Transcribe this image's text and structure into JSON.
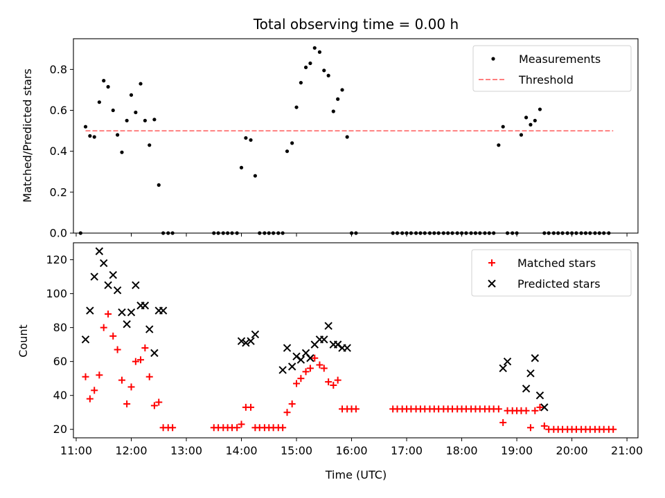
{
  "chart_data": [
    {
      "type": "scatter",
      "title": "Total observing time = 0.00 h",
      "xlabel": "",
      "ylabel": "Matched/Predicted stars",
      "ylim": [
        0,
        0.95
      ],
      "yticks": [
        "0.0",
        "0.2",
        "0.4",
        "0.6",
        "0.8"
      ],
      "legend": {
        "placement": "top-right",
        "entries": [
          "Measurements",
          "Threshold"
        ]
      },
      "series": [
        {
          "name": "Measurements",
          "marker": "dot",
          "color": "#000000",
          "x": [
            11.08,
            11.17,
            11.25,
            11.33,
            11.42,
            11.5,
            11.58,
            11.67,
            11.75,
            11.83,
            11.92,
            12.0,
            12.08,
            12.17,
            12.25,
            12.33,
            12.42,
            12.5,
            12.58,
            12.67,
            12.75,
            13.5,
            13.58,
            13.67,
            13.75,
            13.83,
            13.92,
            14.0,
            14.08,
            14.17,
            14.25,
            14.33,
            14.42,
            14.5,
            14.58,
            14.67,
            14.75,
            14.83,
            14.92,
            15.0,
            15.08,
            15.17,
            15.25,
            15.33,
            15.42,
            15.5,
            15.58,
            15.67,
            15.75,
            15.83,
            15.92,
            16.0,
            16.08,
            16.75,
            16.83,
            16.92,
            17.0,
            17.08,
            17.17,
            17.25,
            17.33,
            17.42,
            17.5,
            17.58,
            17.67,
            17.75,
            17.83,
            17.92,
            18.0,
            18.08,
            18.17,
            18.25,
            18.33,
            18.42,
            18.5,
            18.58,
            18.67,
            18.75,
            18.83,
            18.92,
            19.0,
            19.08,
            19.17,
            19.25,
            19.33,
            19.42,
            19.5,
            19.58,
            19.67,
            19.75,
            19.83,
            19.92,
            20.0,
            20.08,
            20.17,
            20.25,
            20.33,
            20.42,
            20.5,
            20.58,
            20.67
          ],
          "y": [
            0.0,
            0.52,
            0.475,
            0.47,
            0.64,
            0.745,
            0.715,
            0.6,
            0.48,
            0.395,
            0.55,
            0.675,
            0.59,
            0.73,
            0.55,
            0.43,
            0.555,
            0.235,
            0.0,
            0.0,
            0.0,
            0.0,
            0.0,
            0.0,
            0.0,
            0.0,
            0.0,
            0.32,
            0.465,
            0.455,
            0.28,
            0.0,
            0.0,
            0.0,
            0.0,
            0.0,
            0.0,
            0.4,
            0.44,
            0.615,
            0.735,
            0.81,
            0.83,
            0.905,
            0.885,
            0.795,
            0.77,
            0.595,
            0.655,
            0.7,
            0.47,
            0.0,
            0.0,
            0.0,
            0.0,
            0.0,
            0.0,
            0.0,
            0.0,
            0.0,
            0.0,
            0.0,
            0.0,
            0.0,
            0.0,
            0.0,
            0.0,
            0.0,
            0.0,
            0.0,
            0.0,
            0.0,
            0.0,
            0.0,
            0.0,
            0.0,
            0.43,
            0.52,
            0.0,
            0.0,
            0.0,
            0.48,
            0.565,
            0.53,
            0.55,
            0.605,
            0.0,
            0.0,
            0.0,
            0.0,
            0.0,
            0.0,
            0.0,
            0.0,
            0.0,
            0.0,
            0.0,
            0.0,
            0.0,
            0.0,
            0.0
          ]
        },
        {
          "name": "Threshold",
          "marker": "dashed-line",
          "color": "#ff7f7f",
          "x": [
            11.17,
            20.75
          ],
          "y": [
            0.5,
            0.5
          ]
        }
      ]
    },
    {
      "type": "scatter",
      "title": "",
      "xlabel": "Time (UTC)",
      "ylabel": "Count",
      "ylim": [
        15,
        130
      ],
      "yticks": [
        "20",
        "40",
        "60",
        "80",
        "100",
        "120"
      ],
      "xlim": [
        10.95,
        21.2
      ],
      "xticks": [
        "11:00",
        "12:00",
        "13:00",
        "14:00",
        "15:00",
        "16:00",
        "17:00",
        "18:00",
        "19:00",
        "20:00",
        "21:00"
      ],
      "legend": {
        "placement": "top-right",
        "entries": [
          "Matched stars",
          "Predicted stars"
        ]
      },
      "series": [
        {
          "name": "Matched stars",
          "marker": "plus",
          "color": "#ff0000",
          "x": [
            11.17,
            11.25,
            11.33,
            11.42,
            11.5,
            11.58,
            11.67,
            11.75,
            11.83,
            11.92,
            12.0,
            12.08,
            12.17,
            12.25,
            12.33,
            12.42,
            12.5,
            12.58,
            12.67,
            12.75,
            13.5,
            13.58,
            13.67,
            13.75,
            13.83,
            13.92,
            14.0,
            14.08,
            14.17,
            14.25,
            14.33,
            14.42,
            14.5,
            14.58,
            14.67,
            14.75,
            14.83,
            14.92,
            15.0,
            15.08,
            15.17,
            15.25,
            15.33,
            15.42,
            15.5,
            15.58,
            15.67,
            15.75,
            15.83,
            15.92,
            16.0,
            16.08,
            16.75,
            16.83,
            16.92,
            17.0,
            17.08,
            17.17,
            17.25,
            17.33,
            17.42,
            17.5,
            17.58,
            17.67,
            17.75,
            17.83,
            17.92,
            18.0,
            18.08,
            18.17,
            18.25,
            18.33,
            18.42,
            18.5,
            18.58,
            18.67,
            18.75,
            18.83,
            18.92,
            19.0,
            19.08,
            19.17,
            19.25,
            19.33,
            19.42,
            19.5,
            19.58,
            19.67,
            19.75,
            19.83,
            19.92,
            20.0,
            20.08,
            20.17,
            20.25,
            20.33,
            20.42,
            20.5,
            20.58,
            20.67,
            20.75
          ],
          "y": [
            51,
            38,
            43,
            52,
            80,
            88,
            75,
            67,
            49,
            35,
            45,
            60,
            61,
            68,
            51,
            34,
            36,
            21,
            21,
            21,
            21,
            21,
            21,
            21,
            21,
            21,
            23,
            33,
            33,
            21,
            21,
            21,
            21,
            21,
            21,
            21,
            30,
            35,
            47,
            50,
            54,
            56,
            62,
            58,
            56,
            48,
            46,
            49,
            32,
            32,
            32,
            32,
            32,
            32,
            32,
            32,
            32,
            32,
            32,
            32,
            32,
            32,
            32,
            32,
            32,
            32,
            32,
            32,
            32,
            32,
            32,
            32,
            32,
            32,
            32,
            32,
            24,
            31,
            31,
            31,
            31,
            31,
            21,
            31,
            33,
            22,
            20,
            20,
            20,
            20,
            20,
            20,
            20,
            20,
            20,
            20,
            20,
            20,
            20,
            20,
            20
          ]
        },
        {
          "name": "Predicted stars",
          "marker": "x",
          "color": "#000000",
          "x": [
            11.17,
            11.25,
            11.33,
            11.42,
            11.5,
            11.58,
            11.67,
            11.75,
            11.83,
            11.92,
            12.0,
            12.08,
            12.17,
            12.25,
            12.33,
            12.42,
            12.5,
            12.58,
            14.0,
            14.08,
            14.17,
            14.25,
            14.75,
            14.83,
            14.92,
            15.0,
            15.08,
            15.17,
            15.25,
            15.33,
            15.42,
            15.5,
            15.58,
            15.67,
            15.75,
            15.83,
            15.92,
            18.75,
            18.83,
            19.17,
            19.25,
            19.33,
            19.42,
            19.5
          ],
          "y": [
            73,
            90,
            110,
            125,
            118,
            105,
            111,
            102,
            89,
            82,
            89,
            105,
            93,
            93,
            79,
            65,
            90,
            90,
            72,
            71,
            72,
            76,
            55,
            68,
            57,
            63,
            61,
            65,
            62,
            70,
            73,
            73,
            81,
            70,
            70,
            68,
            68,
            56,
            60,
            44,
            53,
            62,
            40,
            33
          ]
        }
      ]
    }
  ]
}
